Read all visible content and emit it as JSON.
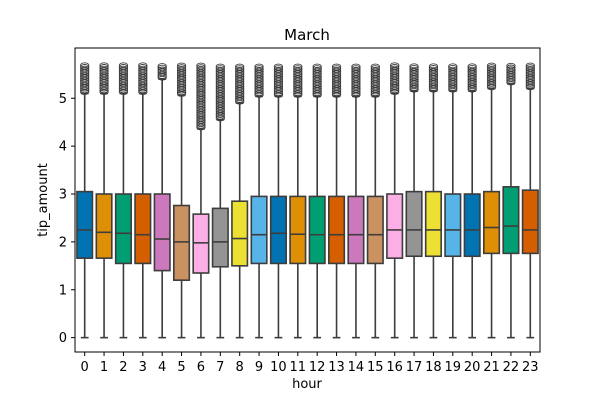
{
  "chart_data": {
    "type": "box",
    "title": "March",
    "xlabel": "hour",
    "ylabel": "tip_amount",
    "categories": [
      "0",
      "1",
      "2",
      "3",
      "4",
      "5",
      "6",
      "7",
      "8",
      "9",
      "10",
      "11",
      "12",
      "13",
      "14",
      "15",
      "16",
      "17",
      "18",
      "19",
      "20",
      "21",
      "22",
      "23"
    ],
    "ylim": [
      -0.3,
      6.05
    ],
    "yticks": [
      "0",
      "1",
      "2",
      "3",
      "4",
      "5"
    ],
    "box_stats": [
      {
        "min": 0,
        "q1": 1.66,
        "median": 2.25,
        "q3": 3.05,
        "max": 5.1,
        "outliers_to": 5.7,
        "color": "#0173b2"
      },
      {
        "min": 0,
        "q1": 1.66,
        "median": 2.2,
        "q3": 3.0,
        "max": 5.1,
        "outliers_to": 5.7,
        "color": "#de8f05"
      },
      {
        "min": 0,
        "q1": 1.55,
        "median": 2.18,
        "q3": 3.0,
        "max": 5.1,
        "outliers_to": 5.7,
        "color": "#029e73"
      },
      {
        "min": 0,
        "q1": 1.55,
        "median": 2.15,
        "q3": 3.0,
        "max": 5.1,
        "outliers_to": 5.7,
        "color": "#d55e00"
      },
      {
        "min": 0,
        "q1": 1.4,
        "median": 2.06,
        "q3": 3.0,
        "max": 5.4,
        "outliers_to": 5.7,
        "color": "#cc78bc"
      },
      {
        "min": 0,
        "q1": 1.2,
        "median": 2.0,
        "q3": 2.76,
        "max": 5.06,
        "outliers_to": 5.7,
        "color": "#ca9161"
      },
      {
        "min": 0,
        "q1": 1.35,
        "median": 1.98,
        "q3": 2.58,
        "max": 4.36,
        "outliers_to": 5.7,
        "color": "#fbafe4"
      },
      {
        "min": 0,
        "q1": 1.48,
        "median": 2.0,
        "q3": 2.7,
        "max": 4.55,
        "outliers_to": 5.7,
        "color": "#949494"
      },
      {
        "min": 0,
        "q1": 1.5,
        "median": 2.07,
        "q3": 2.85,
        "max": 4.9,
        "outliers_to": 5.7,
        "color": "#ece133"
      },
      {
        "min": 0,
        "q1": 1.55,
        "median": 2.15,
        "q3": 2.95,
        "max": 5.04,
        "outliers_to": 5.7,
        "color": "#56b4e9"
      },
      {
        "min": 0,
        "q1": 1.55,
        "median": 2.18,
        "q3": 2.95,
        "max": 5.04,
        "outliers_to": 5.7,
        "color": "#0173b2"
      },
      {
        "min": 0,
        "q1": 1.55,
        "median": 2.16,
        "q3": 2.95,
        "max": 5.04,
        "outliers_to": 5.7,
        "color": "#de8f05"
      },
      {
        "min": 0,
        "q1": 1.55,
        "median": 2.15,
        "q3": 2.95,
        "max": 5.04,
        "outliers_to": 5.7,
        "color": "#029e73"
      },
      {
        "min": 0,
        "q1": 1.55,
        "median": 2.15,
        "q3": 2.95,
        "max": 5.04,
        "outliers_to": 5.7,
        "color": "#d55e00"
      },
      {
        "min": 0,
        "q1": 1.55,
        "median": 2.15,
        "q3": 2.95,
        "max": 5.04,
        "outliers_to": 5.7,
        "color": "#cc78bc"
      },
      {
        "min": 0,
        "q1": 1.55,
        "median": 2.15,
        "q3": 2.95,
        "max": 5.04,
        "outliers_to": 5.7,
        "color": "#ca9161"
      },
      {
        "min": 0,
        "q1": 1.66,
        "median": 2.25,
        "q3": 3.0,
        "max": 5.1,
        "outliers_to": 5.7,
        "color": "#fbafe4"
      },
      {
        "min": 0,
        "q1": 1.7,
        "median": 2.25,
        "q3": 3.05,
        "max": 5.15,
        "outliers_to": 5.7,
        "color": "#949494"
      },
      {
        "min": 0,
        "q1": 1.7,
        "median": 2.25,
        "q3": 3.05,
        "max": 5.15,
        "outliers_to": 5.7,
        "color": "#ece133"
      },
      {
        "min": 0,
        "q1": 1.7,
        "median": 2.25,
        "q3": 3.0,
        "max": 5.15,
        "outliers_to": 5.7,
        "color": "#56b4e9"
      },
      {
        "min": 0,
        "q1": 1.7,
        "median": 2.25,
        "q3": 3.0,
        "max": 5.15,
        "outliers_to": 5.7,
        "color": "#0173b2"
      },
      {
        "min": 0,
        "q1": 1.76,
        "median": 2.3,
        "q3": 3.05,
        "max": 5.2,
        "outliers_to": 5.7,
        "color": "#de8f05"
      },
      {
        "min": 0,
        "q1": 1.76,
        "median": 2.33,
        "q3": 3.15,
        "max": 5.3,
        "outliers_to": 5.7,
        "color": "#029e73"
      },
      {
        "min": 0,
        "q1": 1.76,
        "median": 2.25,
        "q3": 3.08,
        "max": 5.2,
        "outliers_to": 5.7,
        "color": "#d55e00"
      }
    ]
  }
}
